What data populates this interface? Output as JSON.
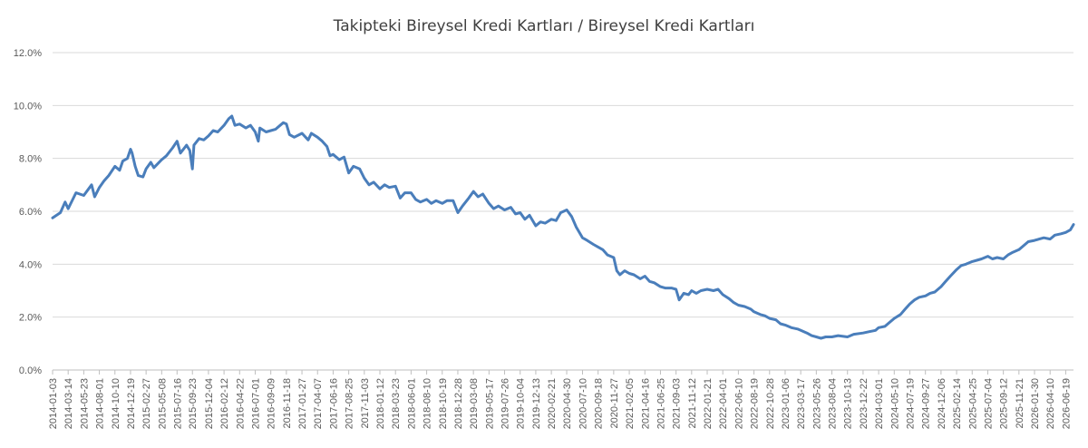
{
  "chart_data": {
    "type": "line",
    "title": "Takipteki Bireysel Kredi Kartları / Bireysel Kredi Kartları",
    "ylim": [
      0,
      12
    ],
    "yticks": [
      "0.0%",
      "2.0%",
      "4.0%",
      "6.0%",
      "8.0%",
      "10.0%",
      "12.0%"
    ],
    "grid": true,
    "x_start": "2014-01-03",
    "x_end": "2026-07-24",
    "xticks": [
      "2014-01-03",
      "2014-03-14",
      "2014-05-23",
      "2014-08-01",
      "2014-10-10",
      "2014-12-19",
      "2015-02-27",
      "2015-05-08",
      "2015-07-16",
      "2015-09-23",
      "2015-12-04",
      "2016-02-12",
      "2016-04-22",
      "2016-07-01",
      "2016-09-09",
      "2016-11-18",
      "2017-01-27",
      "2017-04-07",
      "2017-06-16",
      "2017-08-25",
      "2017-11-03",
      "2018-01-12",
      "2018-03-23",
      "2018-06-01",
      "2018-08-10",
      "2018-10-19",
      "2018-12-28",
      "2019-03-08",
      "2019-05-17",
      "2019-07-26",
      "2019-10-04",
      "2019-12-13",
      "2020-02-21",
      "2020-04-30",
      "2020-07-10",
      "2020-09-18",
      "2020-11-27",
      "2021-02-05",
      "2021-04-16",
      "2021-06-25",
      "2021-09-03",
      "2021-11-12",
      "2022-01-21",
      "2022-04-01",
      "2022-06-10",
      "2022-08-19",
      "2022-10-28",
      "2023-01-06",
      "2023-03-17",
      "2023-05-26",
      "2023-08-04",
      "2023-10-13",
      "2023-12-22",
      "2024-03-01",
      "2024-05-10",
      "2024-07-19",
      "2024-09-27",
      "2024-12-06",
      "2025-02-14",
      "2025-04-25",
      "2025-07-04",
      "2025-09-12",
      "2025-11-21",
      "2026-01-30",
      "2026-04-10",
      "2026-06-19"
    ],
    "series": [
      {
        "color": "#4a7ebb",
        "points": [
          [
            "2014-01-03",
            5.75
          ],
          [
            "2014-02-07",
            5.95
          ],
          [
            "2014-02-28",
            6.35
          ],
          [
            "2014-03-14",
            6.1
          ],
          [
            "2014-04-18",
            6.7
          ],
          [
            "2014-05-23",
            6.6
          ],
          [
            "2014-06-27",
            7.0
          ],
          [
            "2014-07-11",
            6.55
          ],
          [
            "2014-08-01",
            6.9
          ],
          [
            "2014-08-22",
            7.15
          ],
          [
            "2014-09-12",
            7.35
          ],
          [
            "2014-10-10",
            7.7
          ],
          [
            "2014-10-31",
            7.55
          ],
          [
            "2014-11-14",
            7.9
          ],
          [
            "2014-12-05",
            8.0
          ],
          [
            "2014-12-19",
            8.35
          ],
          [
            "2014-12-26",
            8.2
          ],
          [
            "2015-01-09",
            7.7
          ],
          [
            "2015-01-23",
            7.35
          ],
          [
            "2015-02-13",
            7.3
          ],
          [
            "2015-02-27",
            7.6
          ],
          [
            "2015-03-20",
            7.85
          ],
          [
            "2015-04-03",
            7.65
          ],
          [
            "2015-05-08",
            7.95
          ],
          [
            "2015-05-29",
            8.1
          ],
          [
            "2015-06-26",
            8.4
          ],
          [
            "2015-07-16",
            8.65
          ],
          [
            "2015-07-31",
            8.2
          ],
          [
            "2015-08-28",
            8.5
          ],
          [
            "2015-09-11",
            8.3
          ],
          [
            "2015-09-23",
            7.6
          ],
          [
            "2015-09-30",
            8.5
          ],
          [
            "2015-10-23",
            8.75
          ],
          [
            "2015-11-13",
            8.7
          ],
          [
            "2015-12-04",
            8.85
          ],
          [
            "2015-12-25",
            9.05
          ],
          [
            "2016-01-15",
            9.0
          ],
          [
            "2016-02-12",
            9.25
          ],
          [
            "2016-03-04",
            9.5
          ],
          [
            "2016-03-18",
            9.6
          ],
          [
            "2016-04-01",
            9.25
          ],
          [
            "2016-04-22",
            9.3
          ],
          [
            "2016-05-20",
            9.15
          ],
          [
            "2016-06-10",
            9.25
          ],
          [
            "2016-07-01",
            9.0
          ],
          [
            "2016-07-15",
            8.65
          ],
          [
            "2016-07-22",
            9.15
          ],
          [
            "2016-08-19",
            9.0
          ],
          [
            "2016-09-09",
            9.05
          ],
          [
            "2016-09-30",
            9.1
          ],
          [
            "2016-10-21",
            9.25
          ],
          [
            "2016-11-04",
            9.35
          ],
          [
            "2016-11-18",
            9.3
          ],
          [
            "2016-12-02",
            8.9
          ],
          [
            "2016-12-23",
            8.8
          ],
          [
            "2017-01-27",
            8.95
          ],
          [
            "2017-02-24",
            8.7
          ],
          [
            "2017-03-10",
            8.95
          ],
          [
            "2017-04-07",
            8.8
          ],
          [
            "2017-04-28",
            8.65
          ],
          [
            "2017-05-19",
            8.45
          ],
          [
            "2017-06-02",
            8.1
          ],
          [
            "2017-06-16",
            8.15
          ],
          [
            "2017-07-14",
            7.95
          ],
          [
            "2017-08-04",
            8.05
          ],
          [
            "2017-08-25",
            7.45
          ],
          [
            "2017-09-15",
            7.7
          ],
          [
            "2017-10-13",
            7.6
          ],
          [
            "2017-11-03",
            7.25
          ],
          [
            "2017-11-24",
            7.0
          ],
          [
            "2017-12-15",
            7.1
          ],
          [
            "2018-01-12",
            6.85
          ],
          [
            "2018-02-02",
            7.0
          ],
          [
            "2018-02-23",
            6.9
          ],
          [
            "2018-03-23",
            6.95
          ],
          [
            "2018-04-13",
            6.5
          ],
          [
            "2018-05-04",
            6.7
          ],
          [
            "2018-06-01",
            6.7
          ],
          [
            "2018-06-22",
            6.45
          ],
          [
            "2018-07-13",
            6.35
          ],
          [
            "2018-08-10",
            6.45
          ],
          [
            "2018-08-31",
            6.3
          ],
          [
            "2018-09-21",
            6.4
          ],
          [
            "2018-10-19",
            6.3
          ],
          [
            "2018-11-09",
            6.4
          ],
          [
            "2018-12-07",
            6.4
          ],
          [
            "2018-12-28",
            5.95
          ],
          [
            "2019-01-18",
            6.2
          ],
          [
            "2019-02-15",
            6.5
          ],
          [
            "2019-03-08",
            6.75
          ],
          [
            "2019-03-29",
            6.55
          ],
          [
            "2019-04-19",
            6.65
          ],
          [
            "2019-05-17",
            6.3
          ],
          [
            "2019-06-07",
            6.1
          ],
          [
            "2019-06-28",
            6.2
          ],
          [
            "2019-07-26",
            6.05
          ],
          [
            "2019-08-23",
            6.15
          ],
          [
            "2019-09-13",
            5.9
          ],
          [
            "2019-10-04",
            5.95
          ],
          [
            "2019-10-25",
            5.7
          ],
          [
            "2019-11-15",
            5.85
          ],
          [
            "2019-12-13",
            5.45
          ],
          [
            "2020-01-03",
            5.6
          ],
          [
            "2020-01-24",
            5.55
          ],
          [
            "2020-02-21",
            5.7
          ],
          [
            "2020-03-13",
            5.65
          ],
          [
            "2020-04-03",
            5.95
          ],
          [
            "2020-04-30",
            6.05
          ],
          [
            "2020-05-22",
            5.8
          ],
          [
            "2020-06-12",
            5.4
          ],
          [
            "2020-07-10",
            5.0
          ],
          [
            "2020-07-31",
            4.9
          ],
          [
            "2020-08-28",
            4.75
          ],
          [
            "2020-09-18",
            4.65
          ],
          [
            "2020-10-09",
            4.55
          ],
          [
            "2020-10-30",
            4.35
          ],
          [
            "2020-11-27",
            4.25
          ],
          [
            "2020-12-11",
            3.75
          ],
          [
            "2020-12-25",
            3.6
          ],
          [
            "2021-01-15",
            3.75
          ],
          [
            "2021-02-05",
            3.65
          ],
          [
            "2021-02-26",
            3.6
          ],
          [
            "2021-03-26",
            3.45
          ],
          [
            "2021-04-16",
            3.55
          ],
          [
            "2021-05-07",
            3.35
          ],
          [
            "2021-05-28",
            3.3
          ],
          [
            "2021-06-25",
            3.15
          ],
          [
            "2021-07-16",
            3.1
          ],
          [
            "2021-08-13",
            3.1
          ],
          [
            "2021-09-03",
            3.05
          ],
          [
            "2021-09-17",
            2.65
          ],
          [
            "2021-10-08",
            2.9
          ],
          [
            "2021-10-29",
            2.85
          ],
          [
            "2021-11-12",
            3.0
          ],
          [
            "2021-12-03",
            2.9
          ],
          [
            "2021-12-24",
            3.0
          ],
          [
            "2022-01-21",
            3.05
          ],
          [
            "2022-02-18",
            3.0
          ],
          [
            "2022-03-11",
            3.05
          ],
          [
            "2022-04-01",
            2.85
          ],
          [
            "2022-04-29",
            2.7
          ],
          [
            "2022-05-20",
            2.55
          ],
          [
            "2022-06-10",
            2.45
          ],
          [
            "2022-07-08",
            2.4
          ],
          [
            "2022-08-05",
            2.3
          ],
          [
            "2022-08-19",
            2.2
          ],
          [
            "2022-09-16",
            2.1
          ],
          [
            "2022-10-07",
            2.05
          ],
          [
            "2022-10-28",
            1.95
          ],
          [
            "2022-11-25",
            1.9
          ],
          [
            "2022-12-16",
            1.75
          ],
          [
            "2023-01-06",
            1.7
          ],
          [
            "2023-02-03",
            1.6
          ],
          [
            "2023-03-03",
            1.55
          ],
          [
            "2023-03-17",
            1.5
          ],
          [
            "2023-04-14",
            1.4
          ],
          [
            "2023-05-05",
            1.3
          ],
          [
            "2023-05-26",
            1.25
          ],
          [
            "2023-06-16",
            1.2
          ],
          [
            "2023-07-07",
            1.25
          ],
          [
            "2023-08-04",
            1.25
          ],
          [
            "2023-09-01",
            1.3
          ],
          [
            "2023-10-13",
            1.25
          ],
          [
            "2023-11-10",
            1.35
          ],
          [
            "2023-12-22",
            1.4
          ],
          [
            "2024-01-19",
            1.45
          ],
          [
            "2024-02-16",
            1.5
          ],
          [
            "2024-03-01",
            1.6
          ],
          [
            "2024-03-29",
            1.65
          ],
          [
            "2024-04-19",
            1.8
          ],
          [
            "2024-05-10",
            1.95
          ],
          [
            "2024-06-07",
            2.1
          ],
          [
            "2024-06-28",
            2.3
          ],
          [
            "2024-07-19",
            2.5
          ],
          [
            "2024-08-09",
            2.65
          ],
          [
            "2024-08-30",
            2.75
          ],
          [
            "2024-09-27",
            2.8
          ],
          [
            "2024-10-18",
            2.9
          ],
          [
            "2024-11-08",
            2.95
          ],
          [
            "2024-12-06",
            3.15
          ],
          [
            "2024-12-27",
            3.35
          ],
          [
            "2025-01-17",
            3.55
          ],
          [
            "2025-02-14",
            3.8
          ],
          [
            "2025-03-07",
            3.95
          ],
          [
            "2025-03-28",
            4.0
          ],
          [
            "2025-04-25",
            4.1
          ],
          [
            "2025-05-16",
            4.15
          ],
          [
            "2025-06-06",
            4.2
          ],
          [
            "2025-07-04",
            4.3
          ],
          [
            "2025-07-25",
            4.2
          ],
          [
            "2025-08-15",
            4.25
          ],
          [
            "2025-09-12",
            4.2
          ],
          [
            "2025-10-03",
            4.35
          ],
          [
            "2025-10-24",
            4.45
          ],
          [
            "2025-11-21",
            4.55
          ],
          [
            "2025-12-12",
            4.7
          ],
          [
            "2026-01-02",
            4.85
          ],
          [
            "2026-01-30",
            4.9
          ],
          [
            "2026-02-20",
            4.95
          ],
          [
            "2026-03-13",
            5.0
          ],
          [
            "2026-04-10",
            4.95
          ],
          [
            "2026-05-01",
            5.1
          ],
          [
            "2026-05-29",
            5.15
          ],
          [
            "2026-06-19",
            5.2
          ],
          [
            "2026-07-10",
            5.3
          ],
          [
            "2026-07-24",
            5.5
          ]
        ]
      }
    ]
  }
}
